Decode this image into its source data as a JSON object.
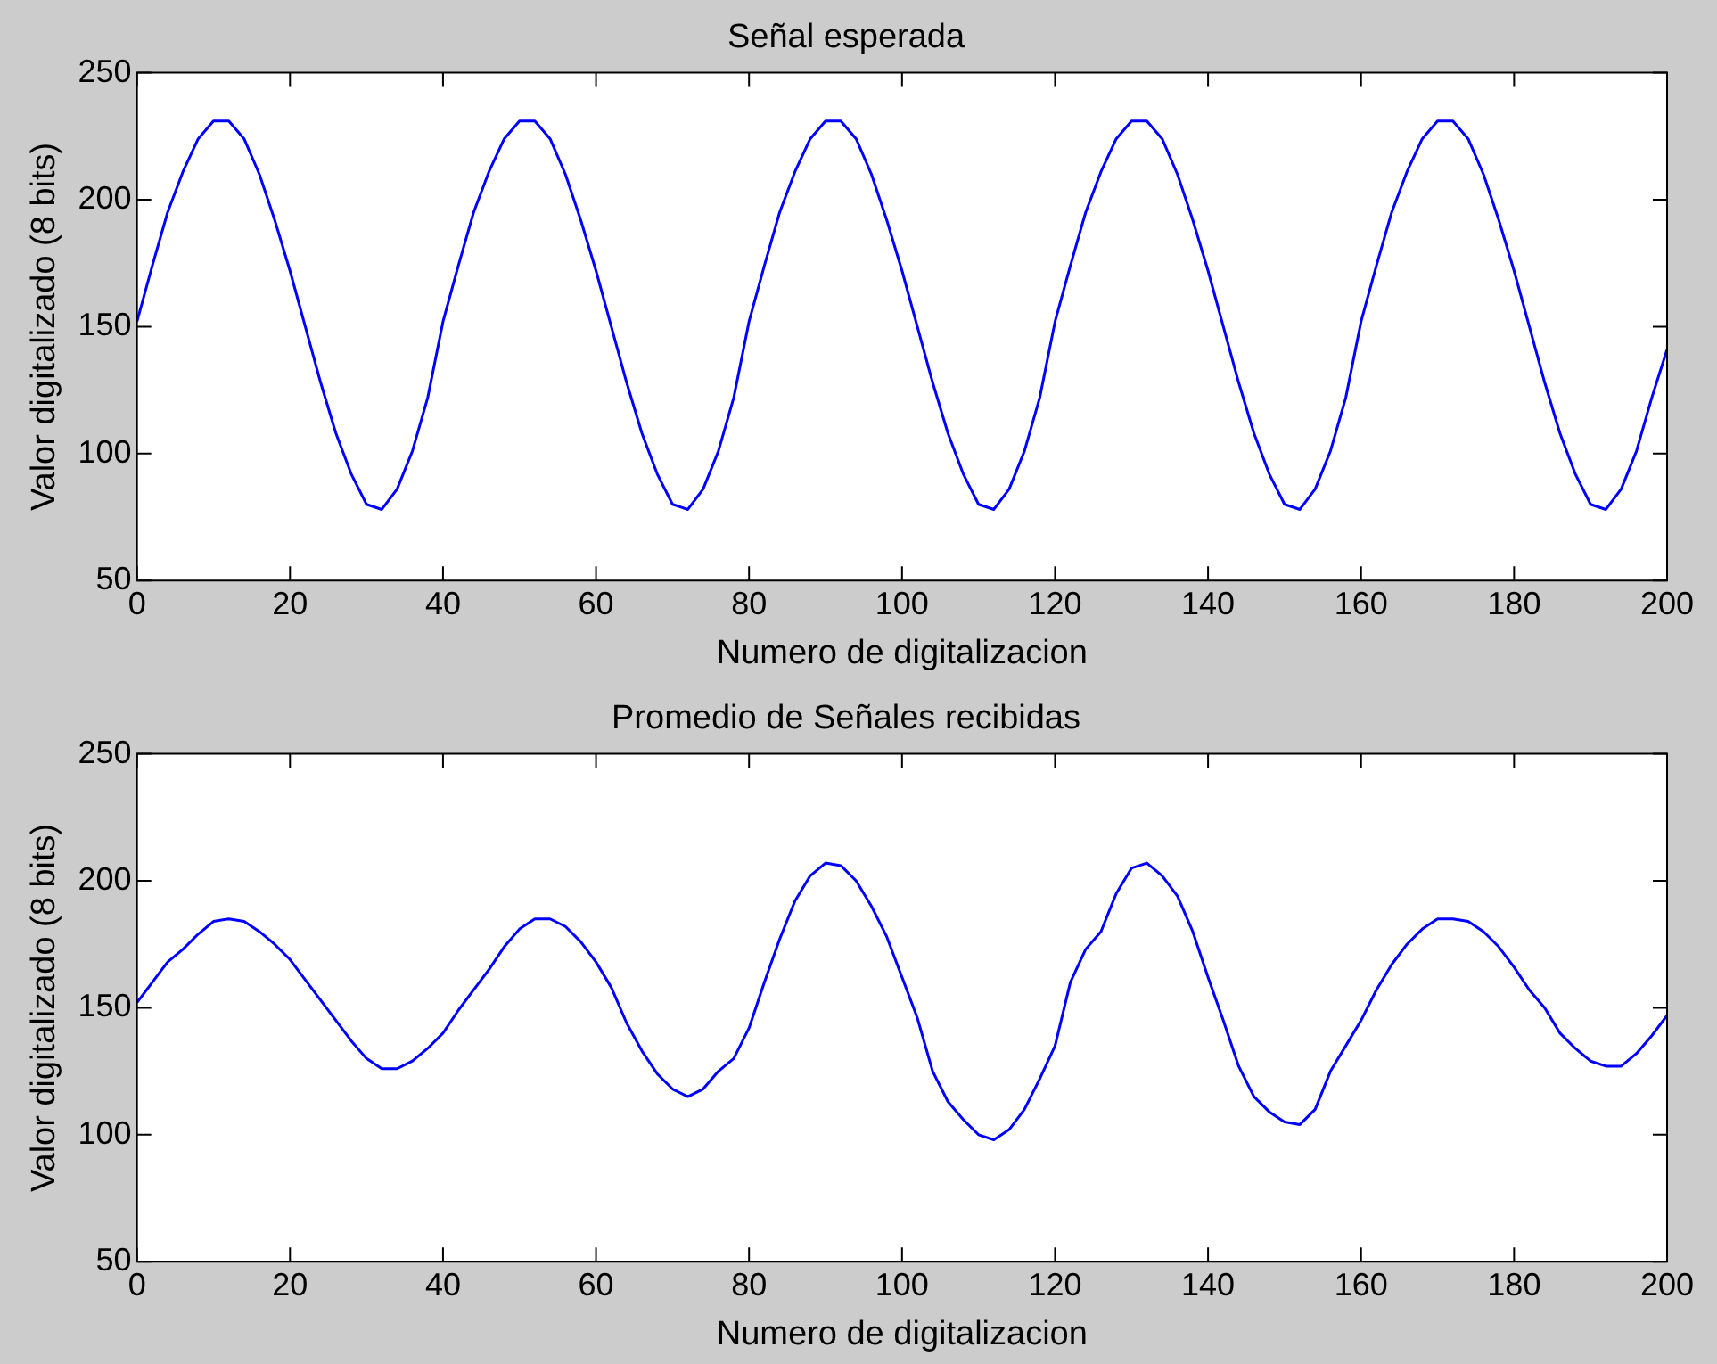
{
  "chart_data": [
    {
      "type": "line",
      "title": "Señal esperada",
      "xlabel": "Numero de digitalizacion",
      "ylabel": "Valor digitalizado (8 bits)",
      "x": [
        0,
        2,
        4,
        6,
        8,
        10,
        12,
        14,
        16,
        18,
        20,
        22,
        24,
        26,
        28,
        30,
        32,
        34,
        36,
        38,
        40,
        42,
        44,
        46,
        48,
        50,
        52,
        54,
        56,
        58,
        60,
        62,
        64,
        66,
        68,
        70,
        72,
        74,
        76,
        78,
        80,
        82,
        84,
        86,
        88,
        90,
        92,
        94,
        96,
        98,
        100,
        102,
        104,
        106,
        108,
        110,
        112,
        114,
        116,
        118,
        120,
        122,
        124,
        126,
        128,
        130,
        132,
        134,
        136,
        138,
        140,
        142,
        144,
        146,
        148,
        150,
        152,
        154,
        156,
        158,
        160,
        162,
        164,
        166,
        168,
        170,
        172,
        174,
        176,
        178,
        180,
        182,
        184,
        186,
        188,
        190,
        192,
        194,
        196,
        198,
        200
      ],
      "series": [
        {
          "color": "#0000ff",
          "values": [
            152,
            174,
            195,
            211,
            224,
            231,
            231,
            224,
            210,
            192,
            172,
            150,
            128,
            108,
            92,
            80,
            78,
            86,
            101,
            122,
            152,
            174,
            195,
            211,
            224,
            231,
            231,
            224,
            210,
            192,
            172,
            150,
            128,
            108,
            92,
            80,
            78,
            86,
            101,
            122,
            152,
            174,
            195,
            211,
            224,
            231,
            231,
            224,
            210,
            192,
            172,
            150,
            128,
            108,
            92,
            80,
            78,
            86,
            101,
            122,
            152,
            174,
            195,
            211,
            224,
            231,
            231,
            224,
            210,
            192,
            172,
            150,
            128,
            108,
            92,
            80,
            78,
            86,
            101,
            122,
            152,
            174,
            195,
            211,
            224,
            231,
            231,
            224,
            210,
            192,
            172,
            150,
            128,
            108,
            92,
            80,
            78,
            86,
            101,
            122,
            141
          ]
        }
      ],
      "xlim": [
        0,
        200
      ],
      "ylim": [
        50,
        250
      ],
      "xticks": [
        0,
        20,
        40,
        60,
        80,
        100,
        120,
        140,
        160,
        180,
        200
      ],
      "yticks": [
        50,
        100,
        150,
        200,
        250
      ]
    },
    {
      "type": "line",
      "title": "Promedio de Señales recibidas",
      "xlabel": "Numero de digitalizacion",
      "ylabel": "Valor digitalizado (8 bits)",
      "x": [
        0,
        2,
        4,
        6,
        8,
        10,
        12,
        14,
        16,
        18,
        20,
        22,
        24,
        26,
        28,
        30,
        32,
        34,
        36,
        38,
        40,
        42,
        44,
        46,
        48,
        50,
        52,
        54,
        56,
        58,
        60,
        62,
        64,
        66,
        68,
        70,
        72,
        74,
        76,
        78,
        80,
        82,
        84,
        86,
        88,
        90,
        92,
        94,
        96,
        98,
        100,
        102,
        104,
        106,
        108,
        110,
        112,
        114,
        116,
        118,
        120,
        122,
        124,
        126,
        128,
        130,
        132,
        134,
        136,
        138,
        140,
        142,
        144,
        146,
        148,
        150,
        152,
        154,
        156,
        158,
        160,
        162,
        164,
        166,
        168,
        170,
        172,
        174,
        176,
        178,
        180,
        182,
        184,
        186,
        188,
        190,
        192,
        194,
        196,
        198,
        200
      ],
      "series": [
        {
          "color": "#0000ff",
          "values": [
            152,
            160,
            168,
            173,
            179,
            184,
            185,
            184,
            180,
            175,
            169,
            161,
            153,
            145,
            137,
            130,
            126,
            126,
            129,
            134,
            140,
            149,
            157,
            165,
            174,
            181,
            185,
            185,
            182,
            176,
            168,
            158,
            144,
            133,
            124,
            118,
            115,
            118,
            125,
            130,
            142,
            160,
            177,
            192,
            202,
            207,
            206,
            200,
            190,
            178,
            162,
            146,
            125,
            113,
            106,
            100,
            98,
            102,
            110,
            122,
            135,
            160,
            173,
            180,
            195,
            205,
            207,
            202,
            194,
            180,
            162,
            145,
            127,
            115,
            109,
            105,
            104,
            110,
            125,
            135,
            145,
            157,
            167,
            175,
            181,
            185,
            185,
            184,
            180,
            174,
            166,
            157,
            150,
            140,
            134,
            129,
            127,
            127,
            132,
            139,
            147
          ]
        }
      ],
      "xlim": [
        0,
        200
      ],
      "ylim": [
        50,
        250
      ],
      "xticks": [
        0,
        20,
        40,
        60,
        80,
        100,
        120,
        140,
        160,
        180,
        200
      ],
      "yticks": [
        50,
        100,
        150,
        200,
        250
      ]
    }
  ]
}
